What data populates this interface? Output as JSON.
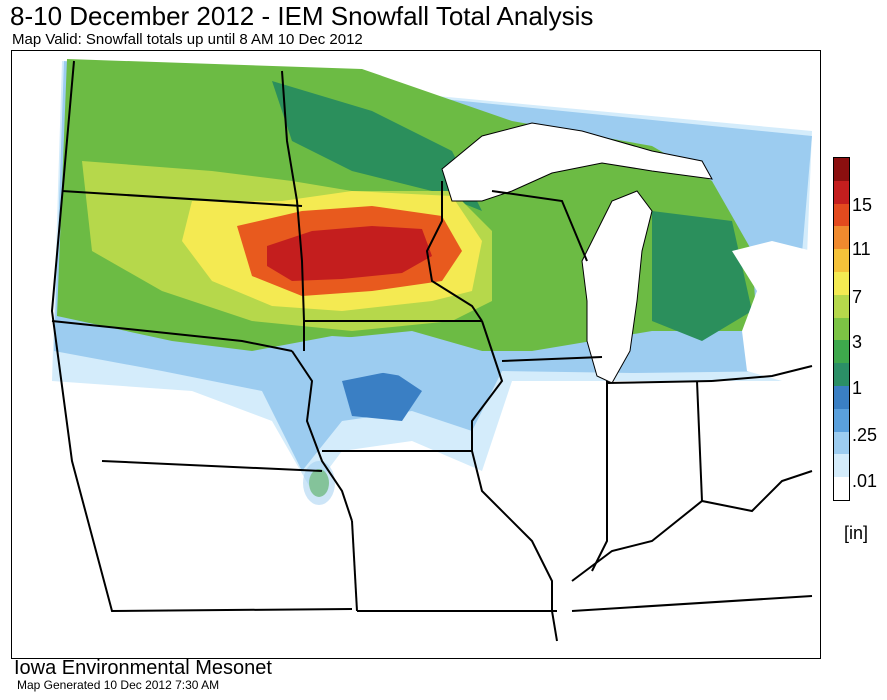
{
  "header": {
    "title": "8-10 December 2012 - IEM Snowfall Total Analysis",
    "subtitle": "Map Valid: Snowfall totals up until 8 AM 10 Dec 2012"
  },
  "legend": {
    "labels": [
      "15",
      "11",
      "7",
      "3",
      "1",
      ".25",
      ".01"
    ],
    "unit": "[in]",
    "colors": [
      "#8b0f0f",
      "#c41e1e",
      "#e34a1e",
      "#f08a2e",
      "#f5c23a",
      "#f4ea52",
      "#b6d84b",
      "#7cc444",
      "#3ea84c",
      "#2b8f66",
      "#3a7fc4",
      "#5aa0dd",
      "#9cccf0",
      "#d4ecfb",
      "#ffffff"
    ]
  },
  "footer": {
    "organization": "Iowa Environmental Mesonet",
    "generated": "Map Generated 10 Dec 2012 7:30 AM"
  },
  "colors": {
    "heavy": "#c41e1e",
    "orange": "#e85a1e",
    "yellow": "#f4ea52",
    "lightgreen": "#b6d84b",
    "green": "#6cbb44",
    "darkgreen": "#2b8f5c",
    "blue": "#3a7fc4",
    "lightblue": "#9cccf0",
    "paleblue": "#d4ecfb",
    "lake": "#ffffff",
    "border": "#000000"
  }
}
